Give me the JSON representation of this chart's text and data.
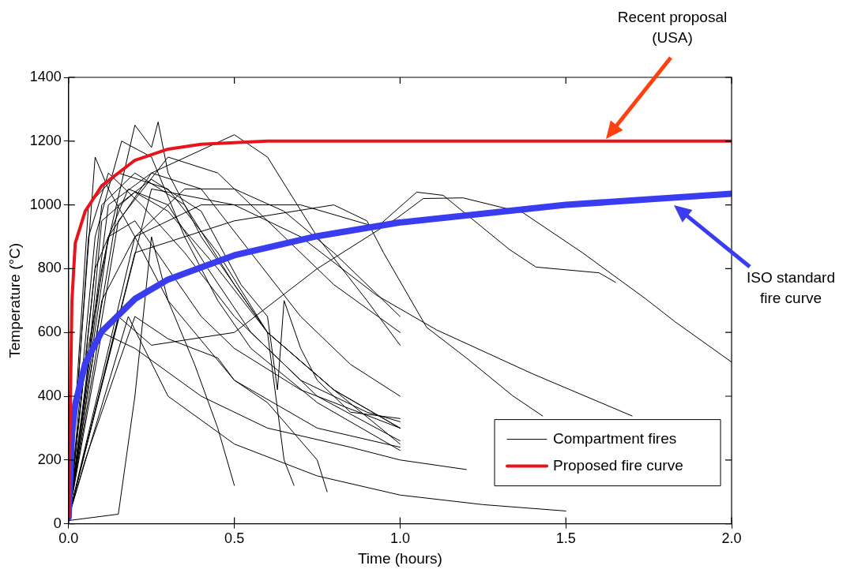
{
  "chart_data": {
    "type": "line",
    "xlabel": "Time (hours)",
    "ylabel": "Temperature (°C)",
    "xlim": [
      0,
      2
    ],
    "ylim": [
      0,
      1400
    ],
    "xticks": [
      {
        "value": 0,
        "label": "0.0"
      },
      {
        "value": 0.5,
        "label": "0.5"
      },
      {
        "value": 1,
        "label": "1.0"
      },
      {
        "value": 1.5,
        "label": "1.5"
      },
      {
        "value": 2,
        "label": "2.0"
      }
    ],
    "yticks": [
      0,
      200,
      400,
      600,
      800,
      1000,
      1200,
      1400
    ],
    "grid": false,
    "legend": "bottom right",
    "marker": "none",
    "line_style": "solid",
    "annotations": [
      "Recent proposal\n(USA)",
      "ISO standard\nfire curve"
    ],
    "series": [
      {
        "name": "Compartment fires",
        "color": "#000000",
        "x": [
          0,
          0.05,
          0.1,
          0.2,
          0.3,
          0.45,
          0.6,
          0.8,
          1.0
        ],
        "values": [
          20,
          400,
          950,
          1040,
          980,
          800,
          600,
          420,
          300
        ]
      },
      {
        "color": "#000000",
        "x": [
          0,
          0.04,
          0.08,
          0.12,
          0.2,
          0.3,
          0.5,
          0.75,
          1.0
        ],
        "values": [
          30,
          600,
          1150,
          1050,
          900,
          700,
          450,
          300,
          240
        ]
      },
      {
        "color": "#000000",
        "x": [
          0,
          0.1,
          0.2,
          0.25,
          0.27,
          0.3,
          0.4,
          0.6,
          0.8,
          1.0
        ],
        "values": [
          20,
          800,
          1250,
          1180,
          1260,
          1100,
          900,
          600,
          420,
          300
        ]
      },
      {
        "color": "#000000",
        "x": [
          0,
          0.12,
          0.25,
          0.5,
          0.6,
          0.75,
          0.9,
          1.0
        ],
        "values": [
          20,
          900,
          1100,
          1220,
          1150,
          900,
          700,
          560
        ]
      },
      {
        "color": "#000000",
        "x": [
          0,
          0.2,
          0.4,
          0.7,
          0.93,
          1.05,
          1.13,
          1.33,
          1.41,
          1.6,
          1.65
        ],
        "values": [
          20,
          900,
          1000,
          1000,
          930,
          1040,
          1030,
          860,
          805,
          787,
          757
        ]
      },
      {
        "color": "#000000",
        "x": [
          0,
          0.15,
          0.25,
          0.5,
          0.75,
          0.99,
          1.07,
          1.19,
          1.37,
          1.55,
          1.74,
          1.83,
          2.0
        ],
        "values": [
          20,
          650,
          560,
          600,
          800,
          958,
          1020,
          1022,
          976,
          850,
          706,
          633,
          507
        ]
      },
      {
        "color": "#000000",
        "x": [
          0,
          0.2,
          0.5,
          0.8,
          0.9,
          0.95,
          1.08,
          1.2,
          1.34,
          1.43
        ],
        "values": [
          20,
          850,
          950,
          1000,
          950,
          850,
          616,
          520,
          401,
          338
        ]
      },
      {
        "color": "#000000",
        "x": [
          0,
          0.25,
          0.5,
          0.7,
          0.93,
          1.11,
          1.4,
          1.7
        ],
        "values": [
          20,
          1050,
          1000,
          900,
          716,
          608,
          470,
          338
        ]
      },
      {
        "color": "#000000",
        "x": [
          0,
          0.18,
          0.3,
          0.5,
          0.75,
          1.0,
          1.25,
          1.5
        ],
        "values": [
          20,
          650,
          400,
          250,
          150,
          90,
          60,
          40
        ]
      },
      {
        "color": "#000000",
        "x": [
          0,
          0.1,
          0.2,
          0.4,
          0.6,
          0.85,
          1.0,
          1.2
        ],
        "values": [
          20,
          600,
          550,
          400,
          300,
          240,
          200,
          170
        ]
      },
      {
        "color": "#000000",
        "x": [
          0,
          0.15,
          0.2,
          0.25,
          0.3,
          0.38,
          0.45,
          0.5
        ],
        "values": [
          10,
          30,
          400,
          900,
          700,
          500,
          300,
          120
        ]
      },
      {
        "color": "#000000",
        "x": [
          0,
          0.05,
          0.2,
          0.3,
          0.45,
          0.5,
          0.6,
          0.75,
          0.78
        ],
        "values": [
          20,
          200,
          650,
          580,
          520,
          450,
          380,
          200,
          100
        ]
      },
      {
        "color": "#000000",
        "x": [
          0,
          0.1,
          0.2,
          0.35,
          0.5,
          0.6,
          0.65,
          0.68
        ],
        "values": [
          20,
          1000,
          1100,
          1000,
          750,
          600,
          200,
          120
        ]
      },
      {
        "color": "#000000",
        "x": [
          0,
          0.06,
          0.15,
          0.3,
          0.45,
          0.6,
          0.8,
          1.0
        ],
        "values": [
          30,
          1000,
          1100,
          1050,
          850,
          600,
          420,
          250
        ]
      },
      {
        "color": "#000000",
        "x": [
          0,
          0.08,
          0.18,
          0.3,
          0.42,
          0.55,
          0.75,
          1.0
        ],
        "values": [
          20,
          800,
          1050,
          1000,
          800,
          600,
          400,
          260
        ]
      },
      {
        "color": "#000000",
        "x": [
          0,
          0.12,
          0.25,
          0.4,
          0.55,
          0.7,
          0.85,
          1.0
        ],
        "values": [
          20,
          1000,
          1100,
          1050,
          850,
          650,
          500,
          400
        ]
      },
      {
        "color": "#000000",
        "x": [
          0,
          0.15,
          0.3,
          0.45,
          0.6,
          0.8,
          1.0
        ],
        "values": [
          20,
          950,
          1150,
          1100,
          950,
          750,
          600
        ]
      },
      {
        "color": "#000000",
        "x": [
          0,
          0.06,
          0.12,
          0.22,
          0.35,
          0.5,
          0.7,
          0.9,
          1.0
        ],
        "values": [
          20,
          900,
          1100,
          1000,
          850,
          650,
          450,
          350,
          320
        ]
      },
      {
        "color": "#000000",
        "x": [
          0,
          0.07,
          0.15,
          0.25,
          0.4,
          0.52,
          0.6,
          0.63,
          0.65,
          0.7,
          0.75,
          0.85,
          1.0
        ],
        "values": [
          10,
          500,
          1000,
          1080,
          980,
          750,
          650,
          420,
          700,
          550,
          450,
          350,
          330
        ]
      },
      {
        "color": "#000000",
        "x": [
          0,
          0.1,
          0.2,
          0.35,
          0.5,
          0.65,
          0.8,
          1.0
        ],
        "values": [
          20,
          700,
          900,
          1050,
          1050,
          980,
          850,
          650
        ]
      },
      {
        "color": "#000000",
        "x": [
          0,
          0.08,
          0.16,
          0.25,
          0.35,
          0.45,
          0.55,
          0.75,
          1.0
        ],
        "values": [
          20,
          900,
          1200,
          1150,
          900,
          700,
          550,
          380,
          230
        ]
      },
      {
        "color": "#000000",
        "x": [
          0,
          0.05,
          0.12,
          0.2,
          0.3,
          0.4,
          0.5,
          0.7,
          1.0
        ],
        "values": [
          20,
          500,
          900,
          950,
          800,
          650,
          550,
          420,
          300
        ]
      },
      {
        "color": "#3a3cf0",
        "x": [
          0,
          0.01,
          0.02,
          0.05,
          0.1,
          0.2,
          0.3,
          0.5,
          0.75,
          1.0,
          1.5,
          2.0
        ],
        "values": [
          20,
          283,
          374,
          502,
          603,
          705,
          766,
          842,
          902,
          945,
          1000,
          1035
        ]
      },
      {
        "name": "Proposed fire curve",
        "color": "#e8141b",
        "x": [
          0,
          0.01,
          0.02,
          0.05,
          0.1,
          0.2,
          0.3,
          0.4,
          0.6,
          2.0
        ],
        "values": [
          20,
          700,
          880,
          980,
          1060,
          1140,
          1175,
          1190,
          1200,
          1200
        ]
      }
    ]
  }
}
